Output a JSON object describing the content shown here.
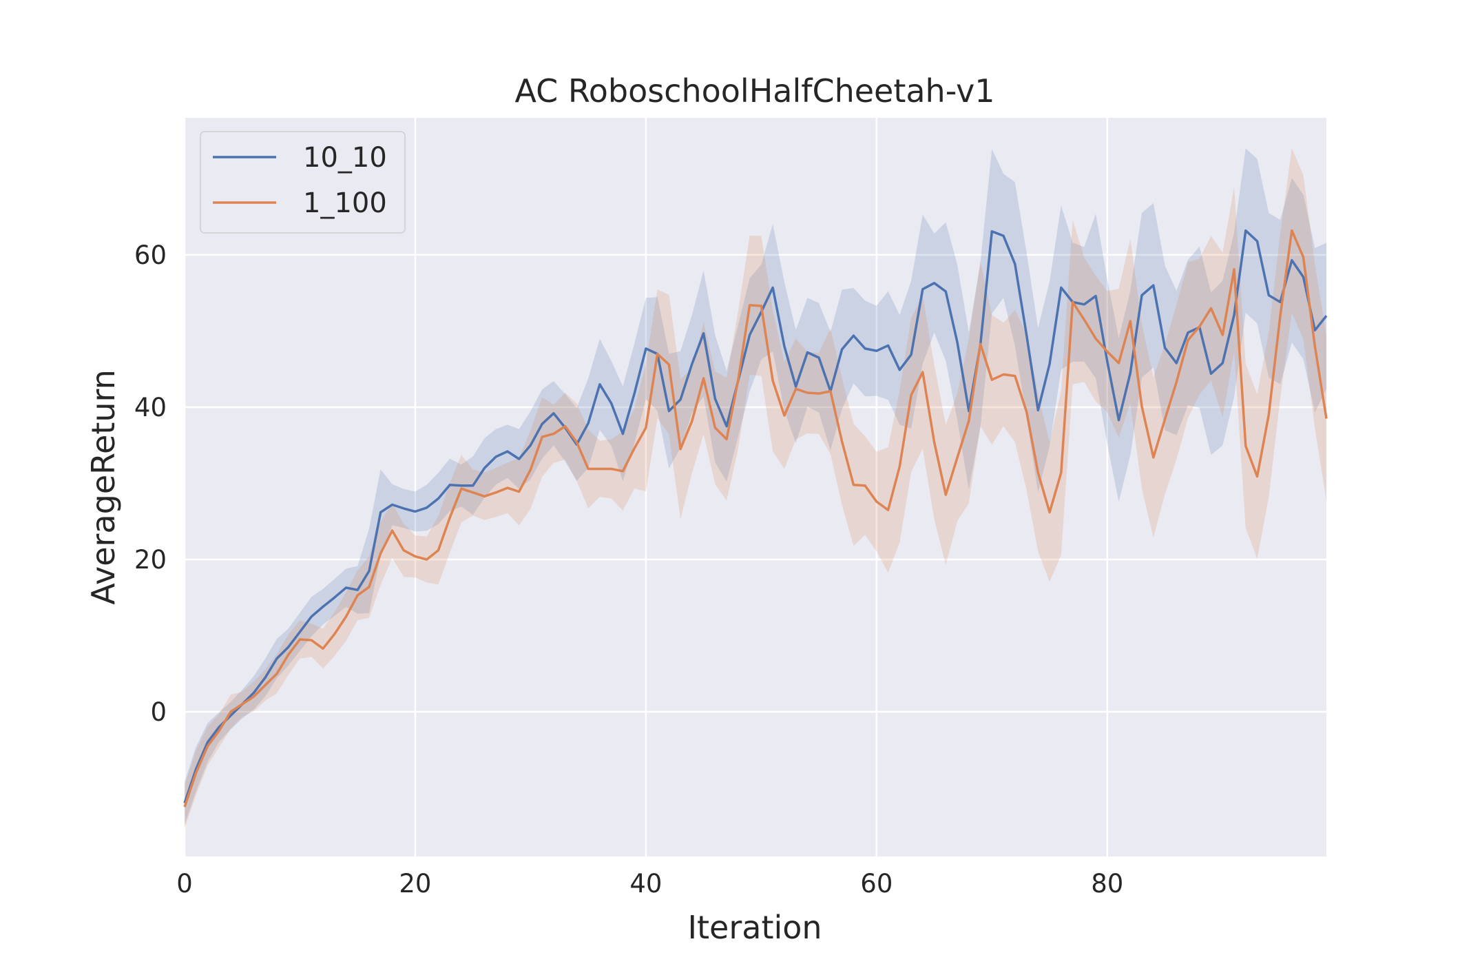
{
  "chart_data": {
    "type": "line",
    "title": "AC RoboschoolHalfCheetah-v1",
    "xlabel": "Iteration",
    "ylabel": "AverageReturn",
    "xlim": [
      0,
      99
    ],
    "ylim": [
      -19,
      78
    ],
    "xticks": [
      0,
      20,
      40,
      60,
      80
    ],
    "yticks": [
      0,
      20,
      40,
      60
    ],
    "grid": true,
    "legend_position": "top-left",
    "series": [
      {
        "name": "10_10",
        "color": "#4c72b0",
        "values": [
          -12,
          -7.5,
          -4,
          -2,
          -0.5,
          1,
          2.5,
          4.5,
          7,
          8.5,
          10.5,
          12.5,
          13.8,
          15,
          16.3,
          16,
          18.5,
          26.2,
          27.2,
          26.7,
          26.3,
          26.8,
          28,
          29.8,
          29.7,
          29.7,
          32,
          33.5,
          34.2,
          33.2,
          35,
          37.8,
          39.2,
          37.3,
          35.1,
          37.9,
          43,
          40.5,
          36.5,
          41.8,
          47.7,
          47,
          39.5,
          41,
          45.7,
          49.7,
          41.1,
          37.5,
          43.5,
          49.5,
          52.5,
          55.7,
          48,
          42.7,
          47.2,
          46.5,
          42.1,
          47.6,
          49.4,
          47.7,
          47.4,
          48.1,
          44.9,
          46.9,
          55.5,
          56.3,
          55.2,
          48.5,
          39.5,
          48.2,
          63.1,
          62.5,
          58.8,
          49.5,
          39.6,
          45.7,
          55.7,
          53.8,
          53.5,
          54.6,
          46,
          38.3,
          44.5,
          54.7,
          56,
          47.8,
          45.8,
          49.8,
          50.5,
          44.4,
          45.8,
          52.1,
          63.2,
          61.8,
          54.7,
          53.8,
          59.3,
          57.1,
          50.1,
          52
        ]
      },
      {
        "name": "1_100",
        "color": "#dd8452",
        "values": [
          -12.5,
          -8,
          -4.5,
          -2.5,
          0,
          1,
          2,
          3.5,
          5,
          7.5,
          9.5,
          9.4,
          8.3,
          10.2,
          12.5,
          15.3,
          16.4,
          20.8,
          23.8,
          21.2,
          20.4,
          20,
          21.2,
          25.5,
          29.3,
          28.8,
          28.3,
          28.8,
          29.4,
          28.9,
          31.8,
          36.1,
          36.5,
          37.5,
          35.4,
          31.9,
          31.9,
          31.9,
          31.6,
          34.6,
          37.3,
          47,
          45.6,
          34.5,
          38.2,
          43.8,
          37.3,
          35.8,
          43.6,
          53.4,
          53.3,
          43.5,
          38.9,
          42.4,
          41.9,
          41.8,
          42.1,
          35.5,
          29.8,
          29.7,
          27.6,
          26.5,
          32.2,
          41.6,
          44.6,
          35.4,
          28.5,
          33.4,
          38.2,
          48.3,
          43.6,
          44.3,
          44.1,
          39.4,
          31.4,
          26.2,
          31.4,
          53.8,
          51.5,
          49,
          47.3,
          45.8,
          51.3,
          40.1,
          33.4,
          38.4,
          43.3,
          48.8,
          50.6,
          53,
          49.5,
          58.1,
          34.9,
          30.9,
          39,
          52,
          63.2,
          59.7,
          48,
          38.5
        ]
      }
    ]
  }
}
